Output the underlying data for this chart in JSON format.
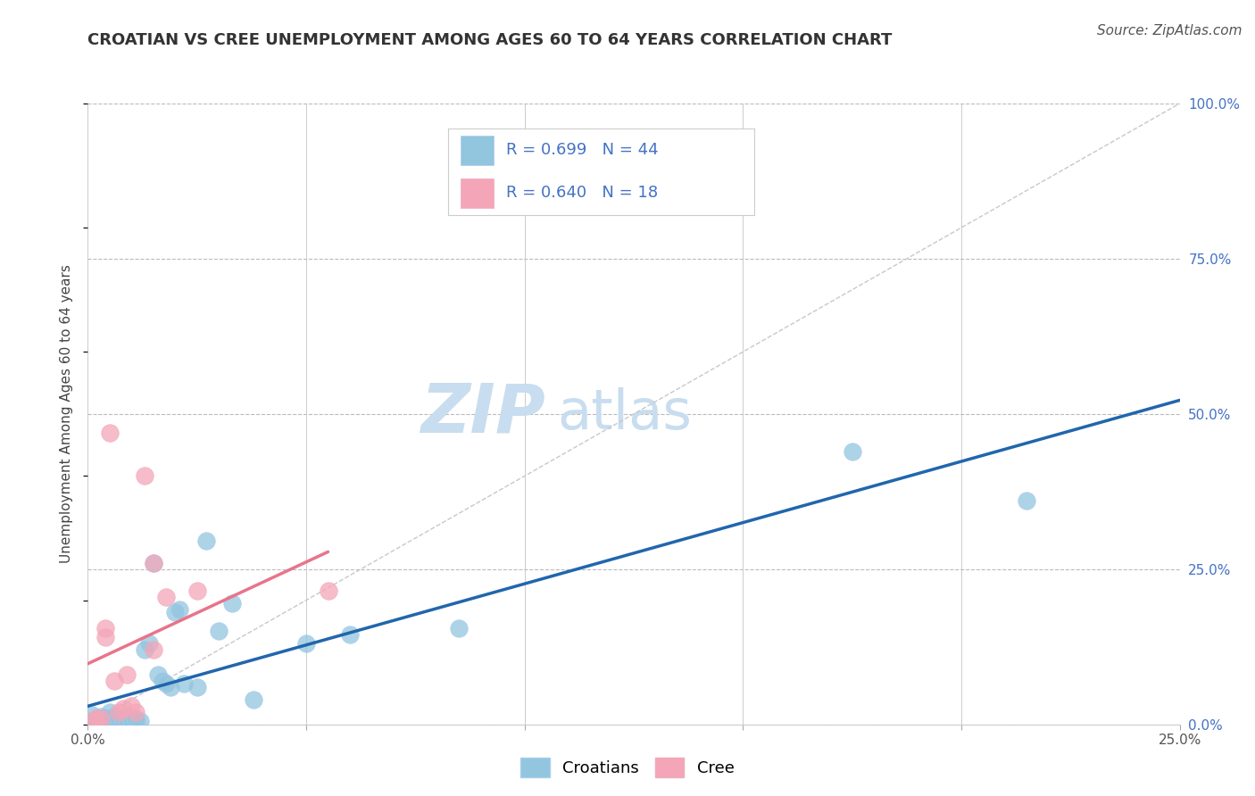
{
  "title": "CROATIAN VS CREE UNEMPLOYMENT AMONG AGES 60 TO 64 YEARS CORRELATION CHART",
  "source": "Source: ZipAtlas.com",
  "ylabel": "Unemployment Among Ages 60 to 64 years",
  "xlim": [
    0.0,
    0.25
  ],
  "ylim": [
    0.0,
    1.0
  ],
  "xticks": [
    0.0,
    0.05,
    0.1,
    0.15,
    0.2,
    0.25
  ],
  "xticklabels": [
    "0.0%",
    "",
    "",
    "",
    "",
    "25.0%"
  ],
  "yticks_right": [
    0.0,
    0.25,
    0.5,
    0.75,
    1.0
  ],
  "yticklabels_right": [
    "0.0%",
    "25.0%",
    "50.0%",
    "75.0%",
    "100.0%"
  ],
  "croatian_color": "#92C5DE",
  "cree_color": "#F4A6B8",
  "croatian_line_color": "#2166AC",
  "cree_line_color": "#E8748A",
  "ref_line_color": "#C8C8C8",
  "legend_text_color": "#4472C4",
  "background_color": "#FFFFFF",
  "grid_color": "#CCCCCC",
  "watermark_zip": "ZIP",
  "watermark_atlas": "atlas",
  "watermark_color_zip": "#C8DDEF",
  "watermark_color_atlas": "#C8DDEF",
  "legend_r_croatian": "R = 0.699",
  "legend_n_croatian": "N = 44",
  "legend_r_cree": "R = 0.640",
  "legend_n_cree": "N = 18",
  "croatian_x": [
    0.001,
    0.001,
    0.002,
    0.002,
    0.003,
    0.003,
    0.004,
    0.004,
    0.005,
    0.005,
    0.005,
    0.006,
    0.006,
    0.007,
    0.007,
    0.008,
    0.008,
    0.009,
    0.009,
    0.01,
    0.01,
    0.011,
    0.011,
    0.012,
    0.013,
    0.014,
    0.015,
    0.016,
    0.017,
    0.018,
    0.019,
    0.02,
    0.021,
    0.022,
    0.025,
    0.027,
    0.03,
    0.033,
    0.038,
    0.05,
    0.06,
    0.085,
    0.175,
    0.215
  ],
  "croatian_y": [
    0.005,
    0.015,
    0.005,
    0.01,
    0.005,
    0.012,
    0.005,
    0.01,
    0.005,
    0.01,
    0.02,
    0.005,
    0.012,
    0.005,
    0.01,
    0.005,
    0.01,
    0.005,
    0.01,
    0.005,
    0.01,
    0.005,
    0.01,
    0.005,
    0.12,
    0.13,
    0.26,
    0.08,
    0.07,
    0.065,
    0.06,
    0.18,
    0.185,
    0.065,
    0.06,
    0.295,
    0.15,
    0.195,
    0.04,
    0.13,
    0.145,
    0.155,
    0.44,
    0.36
  ],
  "cree_x": [
    0.001,
    0.002,
    0.003,
    0.004,
    0.004,
    0.005,
    0.006,
    0.007,
    0.008,
    0.009,
    0.01,
    0.011,
    0.013,
    0.015,
    0.015,
    0.018,
    0.025,
    0.055
  ],
  "cree_y": [
    0.005,
    0.01,
    0.01,
    0.14,
    0.155,
    0.47,
    0.07,
    0.02,
    0.025,
    0.08,
    0.03,
    0.02,
    0.4,
    0.26,
    0.12,
    0.205,
    0.215,
    0.215
  ],
  "title_fontsize": 13,
  "axis_label_fontsize": 11,
  "tick_fontsize": 11,
  "legend_fontsize": 13,
  "source_fontsize": 11,
  "watermark_fontsize_zip": 55,
  "watermark_fontsize_atlas": 45
}
